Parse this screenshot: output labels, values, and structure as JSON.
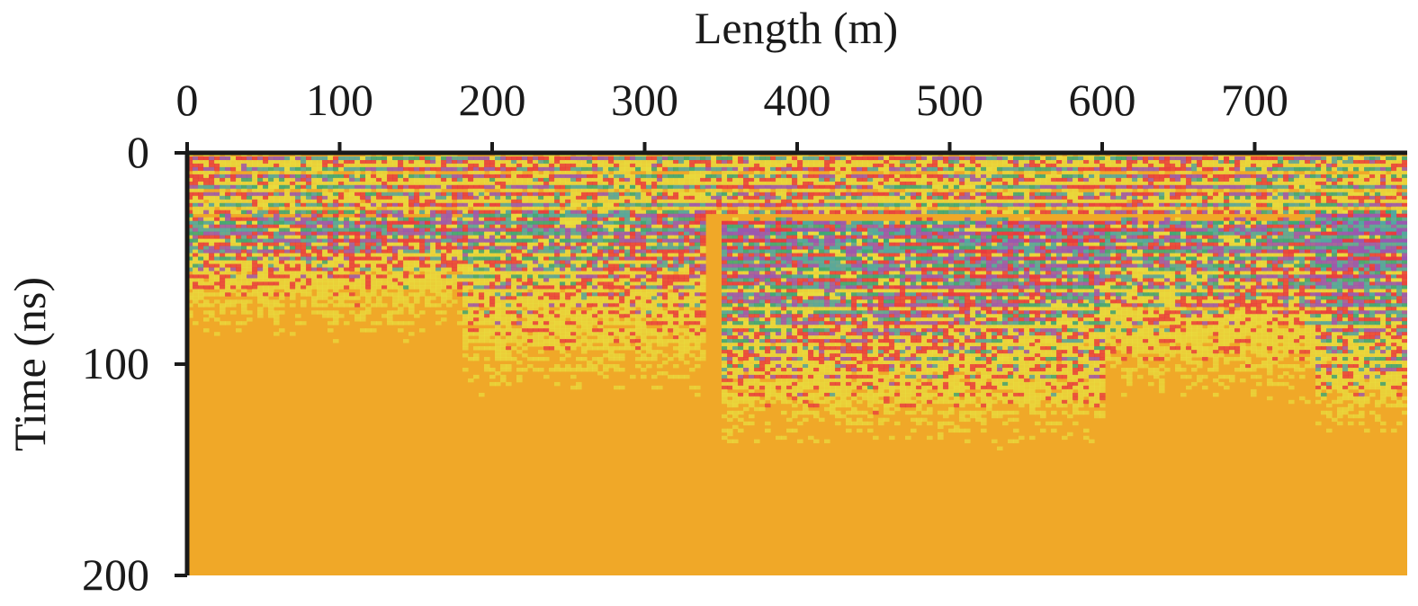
{
  "chart_data": {
    "type": "heatmap",
    "title": "",
    "xlabel": "Length (m)",
    "ylabel": "Time (ns)",
    "x_axis_position": "top",
    "xlim": [
      0,
      800
    ],
    "ylim": [
      0,
      200
    ],
    "y_inverted": true,
    "x_ticks": [
      0,
      100,
      200,
      300,
      400,
      500,
      600,
      700
    ],
    "y_ticks": [
      0,
      100,
      200
    ],
    "grid": false,
    "legend": "none",
    "colors": {
      "background_amplitude": "#f0a828",
      "yellow": "#e8e040",
      "green": "#3aa878",
      "teal": "#52a8a0",
      "purple": "#9a58b0",
      "red": "#e83a40"
    },
    "reflection_zones": [
      {
        "x": [
          0,
          180
        ],
        "t_top": 30,
        "t_bottom": 70,
        "strength": 0.8
      },
      {
        "x": [
          180,
          340
        ],
        "t_top": 28,
        "t_bottom": 95,
        "strength": 0.75
      },
      {
        "x": [
          350,
          600
        ],
        "t_top": 32,
        "t_bottom": 120,
        "strength": 0.9
      },
      {
        "x": [
          600,
          740
        ],
        "t_top": 32,
        "t_bottom": 100,
        "strength": 0.8
      },
      {
        "x": [
          740,
          800
        ],
        "t_top": 28,
        "t_bottom": 115,
        "strength": 1.0
      }
    ]
  }
}
